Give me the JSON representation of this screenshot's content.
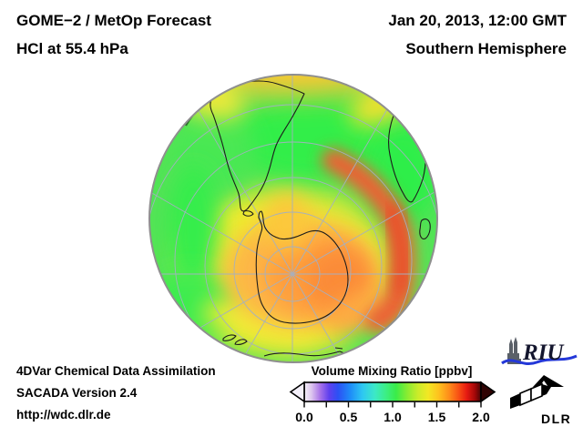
{
  "header": {
    "title_line1": "GOME−2 / MetOp Forecast",
    "title_line2": "HCl at 55.4 hPa",
    "datetime": "Jan 20, 2013, 12:00 GMT",
    "region": "Southern Hemisphere"
  },
  "footer": {
    "line1": "4DVar Chemical Data Assimilation",
    "line2": "SACADA Version 2.4",
    "line3": "http://wdc.dlr.de"
  },
  "colorbar": {
    "label": "Volume Mixing Ratio [ppbv]",
    "tick_labels": [
      "0.0",
      "0.5",
      "1.0",
      "1.5",
      "2.0"
    ],
    "minor_tick_count": 9,
    "left_arrow_color": "#f4f0fa",
    "right_arrow_color": "#300404",
    "gradient_stops": [
      [
        "0",
        "#f4f0f8"
      ],
      [
        "0.04",
        "#ddc6ee"
      ],
      [
        "0.09",
        "#a873e8"
      ],
      [
        "0.14",
        "#6040ee"
      ],
      [
        "0.19",
        "#2c50f4"
      ],
      [
        "0.26",
        "#1e8cf8"
      ],
      [
        "0.33",
        "#2ec8f2"
      ],
      [
        "0.40",
        "#3ce9c6"
      ],
      [
        "0.46",
        "#3cee86"
      ],
      [
        "0.52",
        "#3aec48"
      ],
      [
        "0.58",
        "#86ec32"
      ],
      [
        "0.64",
        "#c8ec2a"
      ],
      [
        "0.70",
        "#f2e824"
      ],
      [
        "0.76",
        "#fec21e"
      ],
      [
        "0.82",
        "#fe8c1a"
      ],
      [
        "0.875",
        "#f84e14"
      ],
      [
        "0.92",
        "#e61a12"
      ],
      [
        "0.965",
        "#a40808"
      ],
      [
        "1",
        "#480404"
      ]
    ]
  },
  "logos": {
    "riu_text": "RIU",
    "dlr_text": "DLR"
  },
  "chart_data": {
    "type": "heatmap",
    "title": "GOME−2 / MetOp Forecast — HCl at 55.4 hPa",
    "datetime": "Jan 20, 2013, 12:00 GMT",
    "view": "Southern Hemisphere, orthographic projection centered near the South Pole",
    "variable": "HCl volume mixing ratio",
    "pressure_level_hPa": 55.4,
    "units": "ppbv",
    "scale": {
      "min": 0.0,
      "max": 2.0,
      "ticks": [
        0.0,
        0.5,
        1.0,
        1.5,
        2.0
      ],
      "palette_order": [
        "white",
        "violet",
        "blue",
        "cyan",
        "green",
        "yellow",
        "orange",
        "red",
        "dark-red"
      ],
      "arrow_extensions": "both ends"
    },
    "legend_position": "bottom-center",
    "grid": "graticule: parallels every ~10 deg, meridians every 30 deg",
    "regions": [
      {
        "region": "equatorial rim band (top edge of disk)",
        "approx_value_ppbv": 1.25,
        "color": "yellow-orange"
      },
      {
        "region": "mid-latitude belt 30–55°S (most of disk)",
        "approx_value_ppbv": 0.95,
        "color": "green"
      },
      {
        "region": "bright minima patches (S Atlantic / S Indian Ocean, left band and upper right)",
        "approx_value_ppbv": 0.85,
        "color": "bright green"
      },
      {
        "region": "transition ring around polar cap ~55–65°S",
        "approx_value_ppbv": 1.1,
        "color": "yellow"
      },
      {
        "region": "Antarctic polar cap (over Antarctica)",
        "approx_value_ppbv": 1.3,
        "color": "orange"
      },
      {
        "region": "vortex crescent, Indian-Ocean sector east of Antarctica",
        "approx_value_ppbv": 1.55,
        "color": "red-orange"
      }
    ],
    "coastlines_shown": [
      "South America",
      "southern Africa",
      "Madagascar",
      "Antarctica",
      "New Zealand",
      "southern Australia"
    ]
  }
}
